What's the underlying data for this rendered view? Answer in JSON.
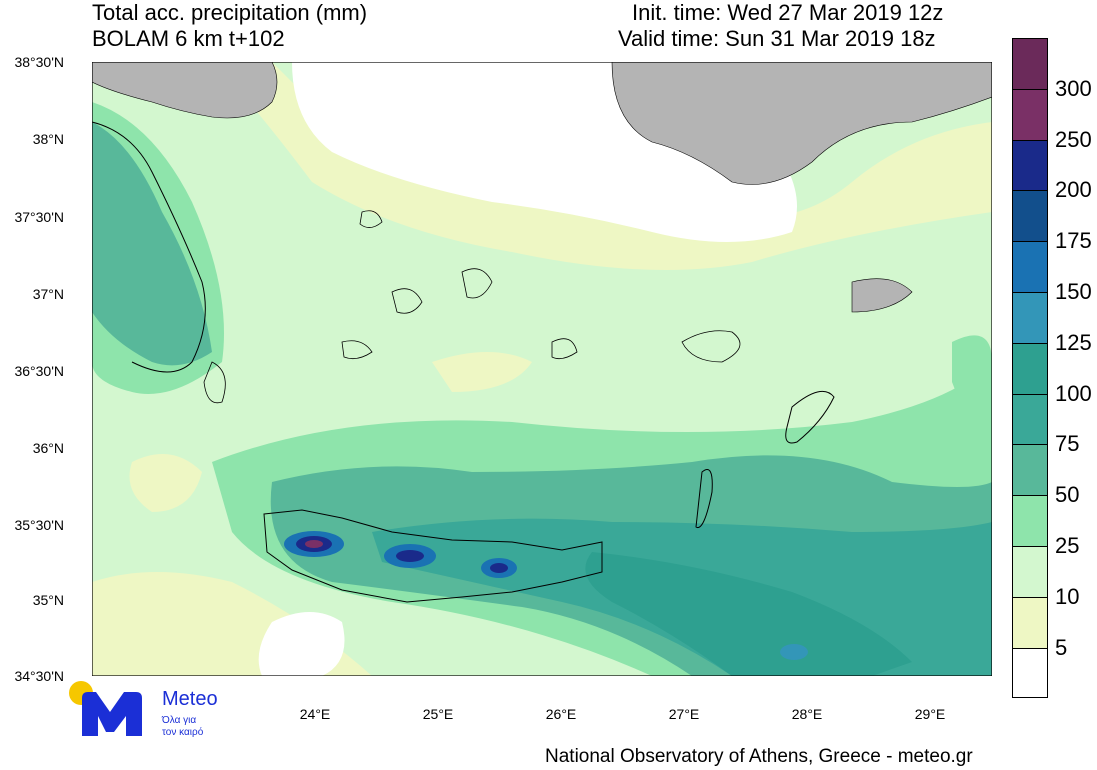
{
  "header": {
    "title": "Total acc. precipitation (mm)",
    "model": "BOLAM 6 km t+102",
    "init_time": "Init. time: Wed 27 Mar 2019 12z",
    "valid_time": "Valid time: Sun 31 Mar 2019 18z"
  },
  "axes": {
    "lat_labels": [
      "38°30'N",
      "38°N",
      "37°30'N",
      "37°N",
      "36°30'N",
      "36°N",
      "35°30'N",
      "35°N",
      "34°30'N"
    ],
    "lon_labels": [
      "24°E",
      "25°E",
      "26°E",
      "27°E",
      "28°E",
      "29°E"
    ]
  },
  "colorbar": {
    "levels": [
      "300",
      "250",
      "200",
      "175",
      "150",
      "125",
      "100",
      "75",
      "50",
      "25",
      "10",
      "5"
    ],
    "colors": [
      "#6b2a5a",
      "#7a3066",
      "#1a2a8a",
      "#124f8c",
      "#1a72b3",
      "#3396b8",
      "#2ea090",
      "#3aa898",
      "#58b89a",
      "#8ee4ab",
      "#d3f7cf",
      "#eef7c4",
      "#ffffff"
    ]
  },
  "map": {
    "land_color": "#b4b4b4",
    "sea_base": "#d3f7cf"
  },
  "logo": {
    "name": "Meteo",
    "tagline_1": "Όλα για",
    "tagline_2": "τον καιρό"
  },
  "footer": "National Observatory of Athens, Greece - meteo.gr"
}
